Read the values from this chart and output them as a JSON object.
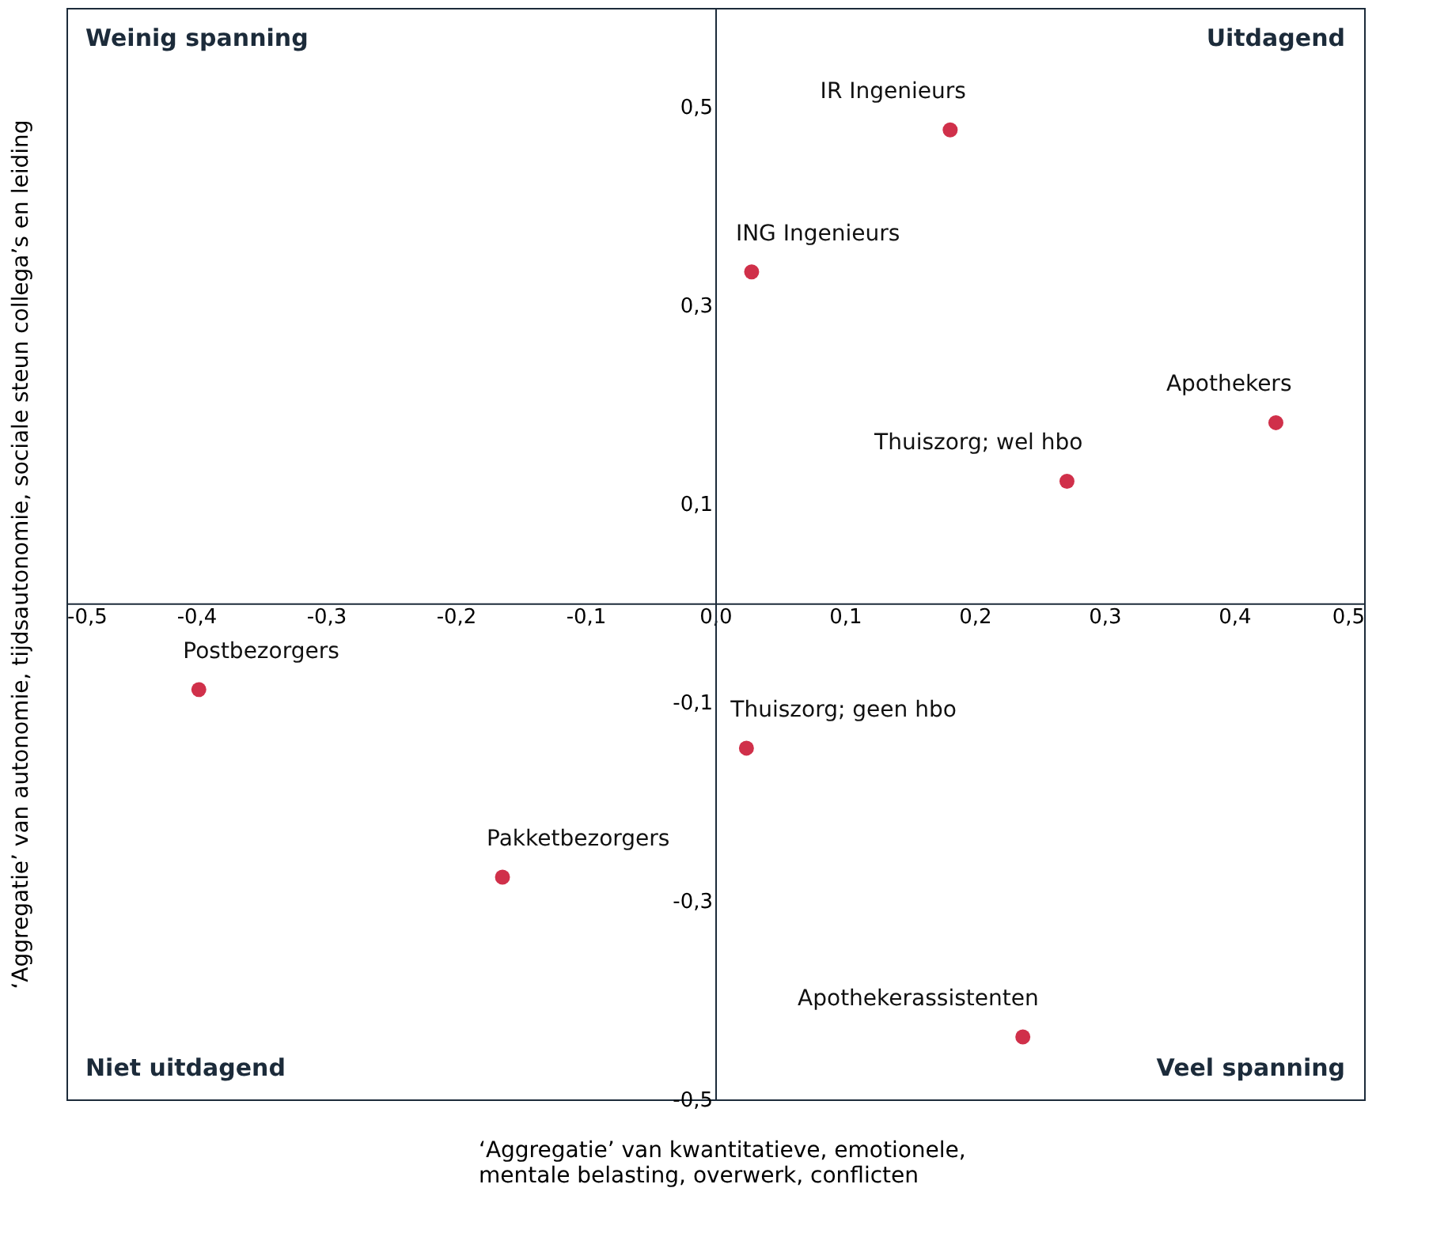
{
  "chart_data": {
    "type": "scatter",
    "xlabel": "‘Aggregatie’ van kwantitatieve, emotionele,\nmentale belasting, overwerk, conflicten",
    "ylabel": "‘Aggregatie’ van autonomie, tijdsautonomie, sociale steun collega’s en leiding",
    "x": [
      0.181,
      0.028,
      0.432,
      0.271,
      0.024,
      0.237,
      -0.398,
      -0.164
    ],
    "series": [
      {
        "color": "#d0304a",
        "values": [
          0.477,
          0.334,
          0.182,
          0.123,
          -0.146,
          -0.437,
          -0.087,
          -0.276
        ]
      }
    ],
    "xlim": [
      -0.5,
      0.5
    ],
    "ylim": [
      -0.5,
      0.6
    ],
    "xticks": [
      {
        "value": -0.5,
        "label": "-0,5"
      },
      {
        "value": -0.4,
        "label": "-0,4"
      },
      {
        "value": -0.3,
        "label": "-0,3"
      },
      {
        "value": -0.2,
        "label": "-0,2"
      },
      {
        "value": -0.1,
        "label": "-0,1"
      },
      {
        "value": 0,
        "label": "0,0"
      },
      {
        "value": 0.1,
        "label": "0,1"
      },
      {
        "value": 0.2,
        "label": "0,2"
      },
      {
        "value": 0.3,
        "label": "0,3"
      },
      {
        "value": 0.4,
        "label": "0,4"
      },
      {
        "value": 0.5,
        "label": "0,5"
      }
    ],
    "yticks": [
      {
        "value": -0.5,
        "label": "-0,5"
      },
      {
        "value": -0.3,
        "label": "-0,3"
      },
      {
        "value": -0.1,
        "label": "-0,1"
      },
      {
        "value": 0.1,
        "label": "0,1"
      },
      {
        "value": 0.3,
        "label": "0,3"
      },
      {
        "value": 0.5,
        "label": "0,5"
      }
    ],
    "marker": "circle",
    "grid": false,
    "annotations": [
      "Weinig spanning",
      "Uitdagend",
      "Niet uitdagend",
      "Veel spanning",
      {
        "text": "IR Ingenieurs",
        "x": 0.181,
        "y": 0.477
      },
      {
        "text": "ING Ingenieurs",
        "x": 0.028,
        "y": 0.334
      },
      {
        "text": "Apothekers",
        "x": 0.432,
        "y": 0.182
      },
      {
        "text": "Thuiszorg; wel hbo",
        "x": 0.271,
        "y": 0.123
      },
      {
        "text": "Thuiszorg; geen hbo",
        "x": 0.024,
        "y": -0.146
      },
      {
        "text": "Apothekerassistenten",
        "x": 0.237,
        "y": -0.437
      },
      {
        "text": "Postbezorgers",
        "x": -0.398,
        "y": -0.087
      },
      {
        "text": "Pakketbezorgers",
        "x": -0.164,
        "y": -0.276
      }
    ]
  }
}
